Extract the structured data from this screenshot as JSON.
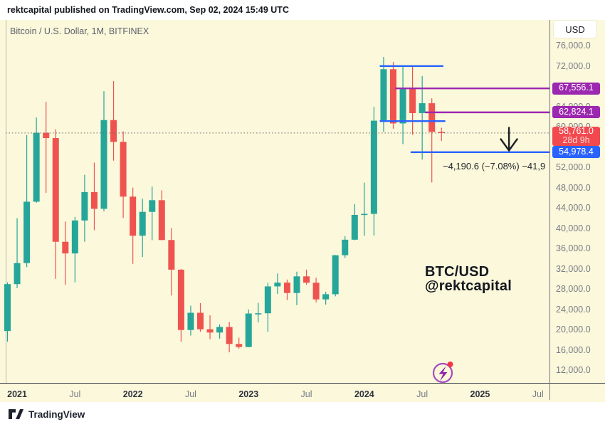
{
  "header": {
    "published_line": "rektcapital published on TradingView.com, Sep 02, 2024 15:49 UTC"
  },
  "legend": {
    "symbol_title": "Bitcoin / U.S. Dollar, 1M, BITFINEX"
  },
  "price_scale": {
    "currency_button": "USD"
  },
  "footer": {
    "brand": "TradingView"
  },
  "colors": {
    "background": "#FBF8DB",
    "up": "#26A69A",
    "down": "#EF5350",
    "blue": "#2962FF",
    "purple": "#9C27B0",
    "last_price_badge": "#F2494F",
    "axis_text": "#787b86",
    "arrow": "#1c1f26"
  },
  "chart_data": {
    "type": "candlestick",
    "symbol": "Bitcoin / U.S. Dollar",
    "ticker": "BTC/USD",
    "exchange": "BITFINEX",
    "interval": "1M",
    "watermark": [
      "BTC/USD",
      "@rektcapital"
    ],
    "y_axis": {
      "min": 12000,
      "max": 76000,
      "step": 4000
    },
    "x_axis": {
      "ticks": [
        {
          "label": "2021",
          "month": 1,
          "bold": true
        },
        {
          "label": "Jul",
          "month": 7,
          "bold": false
        },
        {
          "label": "2022",
          "month": 13,
          "bold": true
        },
        {
          "label": "Jul",
          "month": 19,
          "bold": false
        },
        {
          "label": "2023",
          "month": 25,
          "bold": true
        },
        {
          "label": "Jul",
          "month": 31,
          "bold": false
        },
        {
          "label": "2024",
          "month": 37,
          "bold": true
        },
        {
          "label": "Jul",
          "month": 43,
          "bold": false
        },
        {
          "label": "2025",
          "month": 49,
          "bold": true
        },
        {
          "label": "Jul",
          "month": 55,
          "bold": false
        }
      ]
    },
    "candles_columns": [
      "month",
      "open",
      "high",
      "low",
      "close"
    ],
    "candles": [
      [
        "2020-12",
        19700,
        29300,
        17600,
        28950
      ],
      [
        "2021-01",
        28950,
        41950,
        28150,
        33100
      ],
      [
        "2021-02",
        33100,
        58350,
        32300,
        45200
      ],
      [
        "2021-03",
        45200,
        61800,
        45000,
        58800
      ],
      [
        "2021-04",
        58800,
        64900,
        46950,
        57750
      ],
      [
        "2021-05",
        57750,
        59500,
        30000,
        37300
      ],
      [
        "2021-06",
        37300,
        41300,
        28800,
        35000
      ],
      [
        "2021-07",
        35000,
        42200,
        29300,
        41500
      ],
      [
        "2021-08",
        41500,
        50500,
        37300,
        47100
      ],
      [
        "2021-09",
        47100,
        52900,
        39600,
        43800
      ],
      [
        "2021-10",
        43800,
        67000,
        43300,
        61300
      ],
      [
        "2021-11",
        61300,
        69000,
        53300,
        57000
      ],
      [
        "2021-12",
        57000,
        59100,
        42000,
        46200
      ],
      [
        "2022-01",
        46200,
        47990,
        32950,
        38500
      ],
      [
        "2022-02",
        38500,
        45800,
        34300,
        43200
      ],
      [
        "2022-03",
        43200,
        48200,
        37600,
        45500
      ],
      [
        "2022-04",
        45500,
        47450,
        37600,
        37650
      ],
      [
        "2022-05",
        37650,
        40000,
        26700,
        31800
      ],
      [
        "2022-06",
        31800,
        31950,
        17600,
        19900
      ],
      [
        "2022-07",
        19900,
        24700,
        18800,
        23300
      ],
      [
        "2022-08",
        23300,
        25200,
        19550,
        20050
      ],
      [
        "2022-09",
        20050,
        22800,
        18100,
        19400
      ],
      [
        "2022-10",
        19400,
        21000,
        18200,
        20500
      ],
      [
        "2022-11",
        20500,
        21500,
        15500,
        17150
      ],
      [
        "2022-12",
        17150,
        18400,
        16250,
        16550
      ],
      [
        "2023-01",
        16550,
        23950,
        16500,
        23150
      ],
      [
        "2023-02",
        23150,
        25250,
        21400,
        23200
      ],
      [
        "2023-03",
        23200,
        29200,
        19550,
        28500
      ],
      [
        "2023-04",
        28500,
        31050,
        27000,
        29250
      ],
      [
        "2023-05",
        29250,
        29850,
        25800,
        27200
      ],
      [
        "2023-06",
        27200,
        31400,
        24800,
        30480
      ],
      [
        "2023-07",
        30480,
        31800,
        28850,
        29230
      ],
      [
        "2023-08",
        29230,
        30200,
        25350,
        25940
      ],
      [
        "2023-09",
        25940,
        27450,
        24900,
        26960
      ],
      [
        "2023-10",
        26960,
        34700,
        26550,
        34650
      ],
      [
        "2023-11",
        34650,
        38400,
        34100,
        37710
      ],
      [
        "2023-12",
        37710,
        44700,
        37600,
        42600
      ],
      [
        "2024-01",
        42600,
        48970,
        38500,
        42800
      ],
      [
        "2024-02",
        42800,
        63930,
        38550,
        61180
      ],
      [
        "2024-03",
        61180,
        73750,
        59000,
        71330
      ],
      [
        "2024-04",
        71330,
        72750,
        59600,
        60640
      ],
      [
        "2024-05",
        60640,
        71950,
        56550,
        67520
      ],
      [
        "2024-06",
        67520,
        71990,
        58400,
        62670
      ],
      [
        "2024-07",
        62670,
        69990,
        53500,
        64620
      ],
      [
        "2024-08",
        64620,
        65600,
        49000,
        58970
      ],
      [
        "2024-09",
        58970,
        59800,
        57200,
        58761
      ]
    ],
    "levels": [
      {
        "name": "range-high-line",
        "value": 71950,
        "color": "blue",
        "from_month": 38.6,
        "to_month": 45.2,
        "label": null
      },
      {
        "name": "range-low-line",
        "value": 61100,
        "color": "blue",
        "from_month": 38.6,
        "to_month": 45.4,
        "label": null
      },
      {
        "name": "level-67556-line",
        "value": 67556.1,
        "color": "purple",
        "from_month": 40.2,
        "to_month": null,
        "label": "67,556.1"
      },
      {
        "name": "level-62824-line",
        "value": 62824.1,
        "color": "purple",
        "from_month": 43.3,
        "to_month": null,
        "label": "62,824.1"
      },
      {
        "name": "level-54978-line",
        "value": 54978.4,
        "color": "blue",
        "from_month": 41.8,
        "to_month": null,
        "label": "54,978.4"
      }
    ],
    "last_price": {
      "value": 58761.0,
      "label": "58,761.0",
      "countdown": "28d 9h",
      "direction": "down"
    },
    "annotation": {
      "text": "−4,190.6 (−7.08%) −41,9"
    },
    "arrow": {
      "month": 52,
      "from_value": 59800,
      "to_value": 55300
    }
  }
}
